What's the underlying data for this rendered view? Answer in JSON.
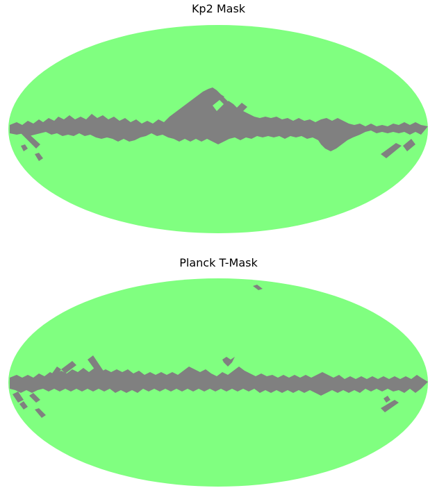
{
  "maps": [
    {
      "title": "Kp2 Mask"
    },
    {
      "title": "Planck T-Mask"
    }
  ],
  "colors": {
    "unmasked": "#80ff80",
    "masked": "#808080",
    "background": "#ffffff",
    "title_text": "#000000"
  },
  "projection": "mollweide"
}
